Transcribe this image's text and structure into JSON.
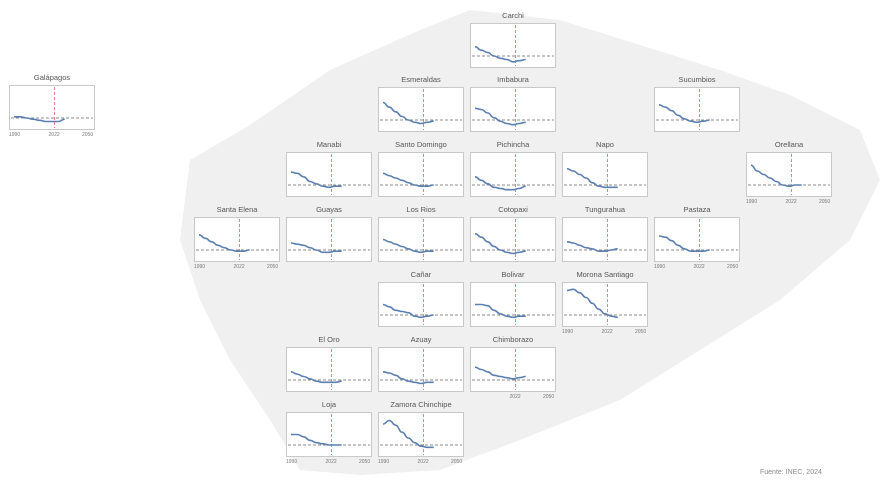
{
  "source": "Fuente: INEC, 2024",
  "colors": {
    "line": "#5b7fb0",
    "vline": "#e06060",
    "baseline": "#666666",
    "frame": "#c8c8c8",
    "map": "#f0f0f0"
  },
  "chart_data": [
    {
      "type": "line",
      "title": "Carchi",
      "x": [
        1990,
        1995,
        2000,
        2005,
        2010,
        2015,
        2020,
        2025,
        2030
      ],
      "values": [
        2.9,
        2.6,
        2.4,
        2.1,
        1.9,
        1.8,
        1.6,
        1.7,
        1.8
      ],
      "xticks": []
    },
    {
      "type": "line",
      "title": "Galápagos",
      "x": [
        1990,
        1995,
        2000,
        2005,
        2010,
        2015,
        2020,
        2025,
        2030
      ],
      "values": [
        2.2,
        2.2,
        2.1,
        2.0,
        1.9,
        1.8,
        1.8,
        1.8,
        2.0
      ],
      "xticks": [
        "1990",
        "2022",
        "2050"
      ]
    },
    {
      "type": "line",
      "title": "Esmeraldas",
      "x": [
        1990,
        1995,
        2000,
        2005,
        2010,
        2015,
        2020,
        2025,
        2030
      ],
      "values": [
        3.6,
        3.2,
        2.8,
        2.4,
        2.1,
        1.9,
        1.8,
        1.9,
        2.0
      ],
      "xticks": []
    },
    {
      "type": "line",
      "title": "Imbabura",
      "x": [
        1990,
        1995,
        2000,
        2005,
        2010,
        2015,
        2020,
        2025,
        2030
      ],
      "values": [
        3.1,
        3.0,
        2.7,
        2.3,
        2.0,
        1.8,
        1.7,
        1.8,
        1.9
      ],
      "xticks": []
    },
    {
      "type": "line",
      "title": "Sucumbios",
      "x": [
        1990,
        1995,
        2000,
        2005,
        2010,
        2015,
        2020,
        2025,
        2030
      ],
      "values": [
        3.4,
        3.2,
        2.9,
        2.5,
        2.2,
        2.0,
        1.9,
        2.0,
        2.1
      ],
      "xticks": []
    },
    {
      "type": "line",
      "title": "Manabi",
      "x": [
        1990,
        1995,
        2000,
        2005,
        2010,
        2015,
        2020,
        2025,
        2030
      ],
      "values": [
        3.2,
        3.1,
        2.8,
        2.4,
        2.2,
        2.0,
        1.9,
        2.0,
        2.0
      ],
      "xticks": []
    },
    {
      "type": "line",
      "title": "Santo Domingo",
      "x": [
        1990,
        1995,
        2000,
        2005,
        2010,
        2015,
        2020,
        2025,
        2030
      ],
      "values": [
        3.1,
        2.9,
        2.7,
        2.5,
        2.3,
        2.1,
        2.0,
        2.0,
        2.1
      ],
      "xticks": []
    },
    {
      "type": "line",
      "title": "Pichincha",
      "x": [
        1990,
        1995,
        2000,
        2005,
        2010,
        2015,
        2020,
        2025,
        2030
      ],
      "values": [
        2.8,
        2.5,
        2.2,
        1.9,
        1.8,
        1.7,
        1.7,
        1.8,
        2.0
      ],
      "xticks": []
    },
    {
      "type": "line",
      "title": "Napo",
      "x": [
        1990,
        1995,
        2000,
        2005,
        2010,
        2015,
        2020,
        2025,
        2030
      ],
      "values": [
        3.5,
        3.3,
        3.0,
        2.7,
        2.3,
        2.0,
        1.9,
        1.9,
        1.9
      ],
      "xticks": []
    },
    {
      "type": "line",
      "title": "Orellana",
      "x": [
        1990,
        1995,
        2000,
        2005,
        2010,
        2015,
        2020,
        2025,
        2030
      ],
      "values": [
        3.8,
        3.3,
        3.0,
        2.7,
        2.4,
        2.1,
        2.0,
        2.1,
        2.1
      ],
      "xticks": [
        "1990",
        "2022",
        "2050"
      ]
    },
    {
      "type": "line",
      "title": "Santa Elena",
      "x": [
        1990,
        1995,
        2000,
        2005,
        2010,
        2015,
        2020,
        2025,
        2030
      ],
      "values": [
        3.4,
        3.1,
        2.8,
        2.5,
        2.3,
        2.1,
        2.0,
        2.0,
        2.1
      ],
      "xticks": [
        "1990",
        "2022",
        "2050"
      ]
    },
    {
      "type": "line",
      "title": "Guayas",
      "x": [
        1990,
        1995,
        2000,
        2005,
        2010,
        2015,
        2020,
        2025,
        2030
      ],
      "values": [
        2.7,
        2.6,
        2.5,
        2.3,
        2.1,
        1.9,
        1.9,
        2.0,
        2.0
      ],
      "xticks": []
    },
    {
      "type": "line",
      "title": "Los Rios",
      "x": [
        1990,
        1995,
        2000,
        2005,
        2010,
        2015,
        2020,
        2025,
        2030
      ],
      "values": [
        3.0,
        2.8,
        2.6,
        2.4,
        2.2,
        2.0,
        1.9,
        2.0,
        2.0
      ],
      "xticks": []
    },
    {
      "type": "line",
      "title": "Cotopaxi",
      "x": [
        1990,
        1995,
        2000,
        2005,
        2010,
        2015,
        2020,
        2025,
        2030
      ],
      "values": [
        3.5,
        3.2,
        2.8,
        2.4,
        2.1,
        1.9,
        1.8,
        1.9,
        2.0
      ],
      "xticks": []
    },
    {
      "type": "line",
      "title": "Tungurahua",
      "x": [
        1990,
        1995,
        2000,
        2005,
        2010,
        2015,
        2020,
        2025,
        2030
      ],
      "values": [
        2.8,
        2.7,
        2.5,
        2.3,
        2.2,
        2.0,
        2.0,
        2.1,
        2.2
      ],
      "xticks": []
    },
    {
      "type": "line",
      "title": "Pastaza",
      "x": [
        1990,
        1995,
        2000,
        2005,
        2010,
        2015,
        2020,
        2025,
        2030
      ],
      "values": [
        3.3,
        3.2,
        2.9,
        2.5,
        2.2,
        2.0,
        2.0,
        2.0,
        2.1
      ],
      "xticks": [
        "1990",
        "2022",
        "2050"
      ]
    },
    {
      "type": "line",
      "title": "Cañar",
      "x": [
        1990,
        1995,
        2000,
        2005,
        2010,
        2015,
        2020,
        2025,
        2030
      ],
      "values": [
        3.0,
        2.8,
        2.5,
        2.4,
        2.3,
        2.0,
        1.9,
        2.0,
        2.1
      ],
      "xticks": []
    },
    {
      "type": "line",
      "title": "Bolivar",
      "x": [
        1990,
        1995,
        2000,
        2005,
        2010,
        2015,
        2020,
        2025,
        2030
      ],
      "values": [
        3.0,
        3.0,
        2.9,
        2.5,
        2.2,
        2.0,
        1.9,
        2.0,
        2.0
      ],
      "xticks": []
    },
    {
      "type": "line",
      "title": "Morona Santiago",
      "x": [
        1990,
        1995,
        2000,
        2005,
        2010,
        2015,
        2020,
        2025,
        2030
      ],
      "values": [
        4.2,
        4.3,
        4.0,
        3.6,
        3.1,
        2.6,
        2.2,
        2.0,
        1.9
      ],
      "xticks": [
        "1990",
        "2022",
        "2050"
      ]
    },
    {
      "type": "line",
      "title": "El Oro",
      "x": [
        1990,
        1995,
        2000,
        2005,
        2010,
        2015,
        2020,
        2025,
        2030
      ],
      "values": [
        2.8,
        2.6,
        2.4,
        2.2,
        2.0,
        1.9,
        1.9,
        1.9,
        2.0
      ],
      "xticks": []
    },
    {
      "type": "line",
      "title": "Azuay",
      "x": [
        1990,
        1995,
        2000,
        2005,
        2010,
        2015,
        2020,
        2025,
        2030
      ],
      "values": [
        2.8,
        2.7,
        2.5,
        2.2,
        2.0,
        1.9,
        1.8,
        1.9,
        1.9
      ],
      "xticks": []
    },
    {
      "type": "line",
      "title": "Chimborazo",
      "x": [
        1990,
        1995,
        2000,
        2005,
        2010,
        2015,
        2020,
        2025,
        2030
      ],
      "values": [
        3.2,
        3.0,
        2.8,
        2.5,
        2.4,
        2.3,
        2.2,
        2.3,
        2.4
      ],
      "xticks": [
        "",
        "2022",
        "2050"
      ]
    },
    {
      "type": "line",
      "title": "Loja",
      "x": [
        1990,
        1995,
        2000,
        2005,
        2010,
        2015,
        2020,
        2025,
        2030
      ],
      "values": [
        3.0,
        3.0,
        2.8,
        2.5,
        2.3,
        2.2,
        2.1,
        2.1,
        2.1
      ],
      "xticks": [
        "1990",
        "2022",
        "2050"
      ]
    },
    {
      "type": "line",
      "title": "Zamora Chinchipe",
      "x": [
        1990,
        1995,
        2000,
        2005,
        2010,
        2015,
        2020,
        2025,
        2030
      ],
      "values": [
        3.9,
        4.2,
        3.8,
        3.2,
        2.7,
        2.3,
        2.0,
        1.9,
        1.9
      ],
      "xticks": [
        "1990",
        "2022",
        "2050"
      ]
    }
  ]
}
